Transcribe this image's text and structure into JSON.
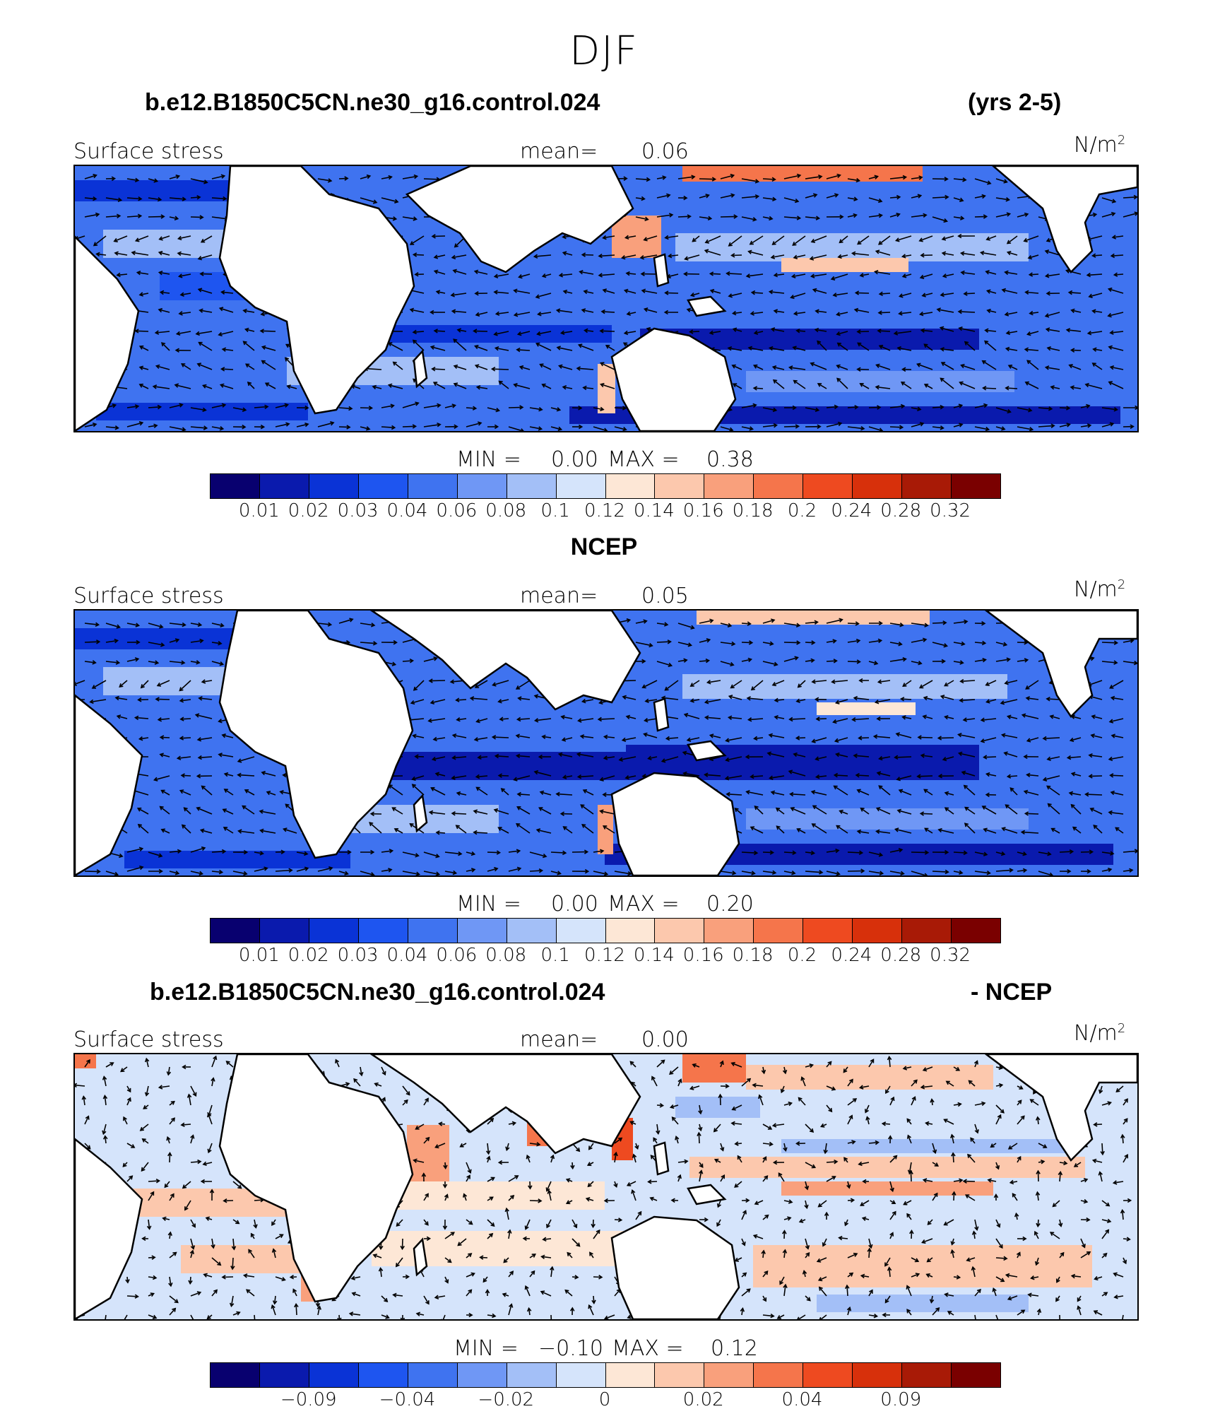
{
  "title": "DJF",
  "palette": [
    "#08006f",
    "#0a1aad",
    "#0a33d6",
    "#1e55f0",
    "#3f73f0",
    "#6f97f5",
    "#a3bff7",
    "#d5e4fb",
    "#fde7d6",
    "#fcc8ad",
    "#f9a07c",
    "#f5754b",
    "#ee4a20",
    "#d7300b",
    "#a81a06",
    "#7a0000"
  ],
  "panels": [
    {
      "header_left": "b.e12.B1850C5CN.ne30_g16.control.024",
      "header_right": "(yrs 2-5)",
      "field_label": "Surface stress",
      "mean_label": "mean=",
      "mean_value": "0.06",
      "units_base": "N/m",
      "units_exp": "2",
      "min_label": "MIN =",
      "min_value": "0.00",
      "max_label": "MAX =",
      "max_value": "0.38",
      "colorbar_ticks": [
        "0.01",
        "0.02",
        "0.03",
        "0.04",
        "0.06",
        "0.08",
        "0.1",
        "0.12",
        "0.14",
        "0.16",
        "0.18",
        "0.2",
        "0.24",
        "0.28",
        "0.32"
      ]
    },
    {
      "header_center": "NCEP",
      "field_label": "Surface stress",
      "mean_label": "mean=",
      "mean_value": "0.05",
      "units_base": "N/m",
      "units_exp": "2",
      "min_label": "MIN =",
      "min_value": "0.00",
      "max_label": "MAX =",
      "max_value": "0.20",
      "colorbar_ticks": [
        "0.01",
        "0.02",
        "0.03",
        "0.04",
        "0.06",
        "0.08",
        "0.1",
        "0.12",
        "0.14",
        "0.16",
        "0.18",
        "0.2",
        "0.24",
        "0.28",
        "0.32"
      ]
    },
    {
      "header_left": "b.e12.B1850C5CN.ne30_g16.control.024",
      "header_right": "- NCEP",
      "field_label": "Surface stress",
      "mean_label": "mean=",
      "mean_value": "0.00",
      "units_base": "N/m",
      "units_exp": "2",
      "min_label": "MIN =",
      "min_value": "−0.10",
      "max_label": "MAX =",
      "max_value": "0.12",
      "colorbar_ticks": [
        "−0.09",
        "−0.04",
        "−0.02",
        "0",
        "0.02",
        "0.04",
        "0.09"
      ]
    }
  ]
}
